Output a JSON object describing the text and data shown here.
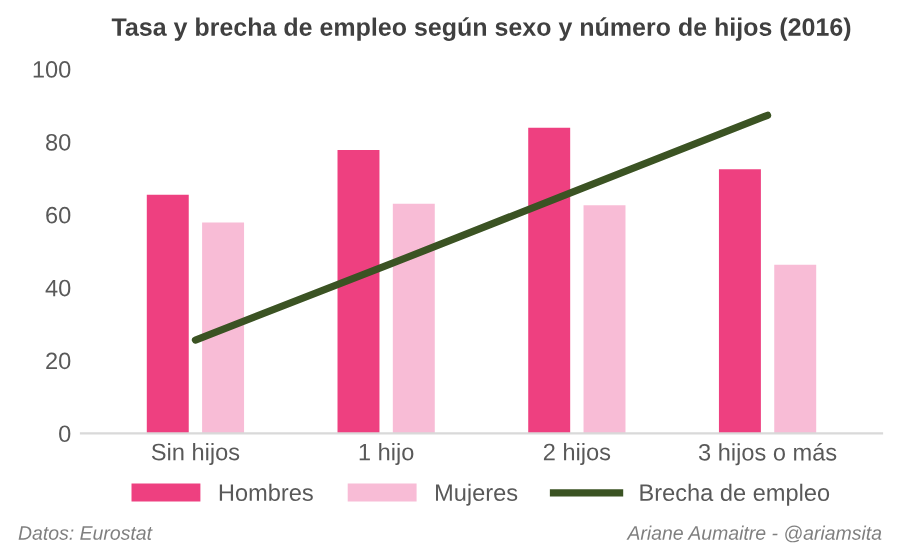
{
  "chart_data": {
    "type": "bar",
    "title": "Tasa y brecha de empleo según sexo y número de hijos (2016)",
    "categories": [
      "Sin hijos",
      "1 hijo",
      "2 hijos",
      "3 hijos o más"
    ],
    "series": [
      {
        "name": "Hombres",
        "color": "#ee4080",
        "values": [
          65.5,
          77.8,
          83.9,
          72.5
        ]
      },
      {
        "name": "Mujeres",
        "color": "#f8bcd6",
        "values": [
          57.9,
          63,
          62.6,
          46.3
        ]
      },
      {
        "name": "Brecha de empleo",
        "type": "line",
        "color": "#3b5323",
        "values": [
          25.6,
          46,
          66.7,
          87.3
        ]
      }
    ],
    "ylim": [
      0,
      100
    ],
    "yticks": [
      0,
      20,
      40,
      60,
      80,
      100
    ],
    "grid": false,
    "legend": "bottom",
    "annotations": [
      "Datos: Eurostat",
      "Ariane Aumaitre - @ariamsita"
    ]
  }
}
